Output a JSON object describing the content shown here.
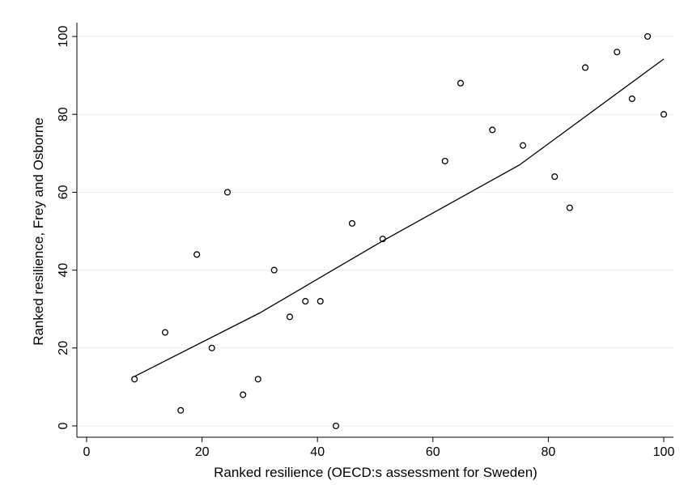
{
  "chart_data": {
    "type": "scatter",
    "x_label": "Ranked resilience (OECD:s assessment for Sweden)",
    "y_label": "Ranked resilience, Frey and Osborne",
    "x": [
      8.3,
      13.6,
      16.3,
      19.1,
      21.7,
      24.4,
      27.1,
      29.7,
      32.5,
      35.2,
      37.9,
      40.5,
      43.2,
      46.0,
      51.3,
      62.1,
      64.8,
      70.3,
      75.6,
      81.1,
      83.7,
      86.4,
      91.9,
      94.5,
      97.2,
      100
    ],
    "y": [
      12,
      24,
      4,
      44,
      20,
      60,
      8,
      12,
      40,
      28,
      32,
      32,
      0,
      52,
      48,
      68,
      88,
      76,
      72,
      64,
      56,
      92,
      96,
      84,
      100,
      80
    ],
    "fit": {
      "x": [
        8.3,
        30,
        51.3,
        75,
        100
      ],
      "y": [
        12.7,
        29,
        47.5,
        67,
        94.2
      ]
    },
    "marker_color": "#000000",
    "line_color": "#000000",
    "xlim": [
      0,
      100
    ],
    "ylim": [
      0,
      100
    ],
    "xticks": [
      0,
      20,
      40,
      60,
      80,
      100
    ],
    "yticks": [
      0,
      20,
      40,
      60,
      80,
      100
    ],
    "grid": true
  }
}
